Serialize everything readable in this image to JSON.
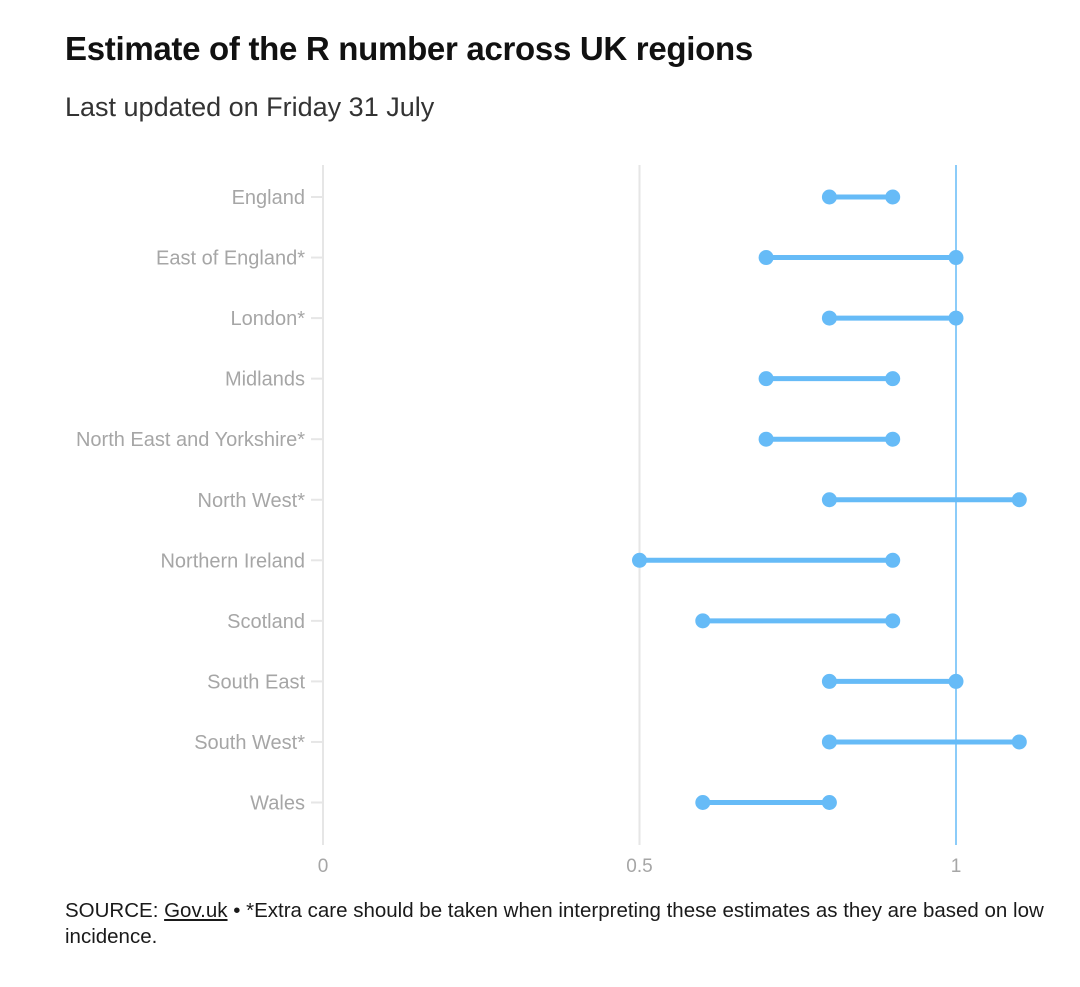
{
  "chart_data": {
    "type": "dumbbell",
    "title": "Estimate of the R number across UK regions",
    "subtitle": "Last updated on Friday 31 July",
    "xlim": [
      0,
      1.1
    ],
    "x_ticks": [
      {
        "value": 0,
        "label": "0"
      },
      {
        "value": 0.5,
        "label": "0.5"
      },
      {
        "value": 1,
        "label": "1"
      }
    ],
    "reference_line": 1,
    "color": "#66bbf7",
    "grid_color": "#e6e6e6",
    "categories": [
      "England",
      "East of England*",
      "London*",
      "Midlands",
      "North East and Yorkshire*",
      "North West*",
      "Northern Ireland",
      "Scotland",
      "South East",
      "South West*",
      "Wales"
    ],
    "series": [
      {
        "name": "lower",
        "values": [
          0.8,
          0.7,
          0.8,
          0.7,
          0.7,
          0.8,
          0.5,
          0.6,
          0.8,
          0.8,
          0.6
        ]
      },
      {
        "name": "upper",
        "values": [
          0.9,
          1.0,
          1.0,
          0.9,
          0.9,
          1.1,
          0.9,
          0.9,
          1.0,
          1.1,
          0.8
        ]
      }
    ]
  },
  "footer": {
    "source_prefix": "SOURCE: ",
    "source_link": "Gov.uk",
    "note": " • *Extra care should be taken when interpreting these estimates as they are based on low incidence."
  }
}
